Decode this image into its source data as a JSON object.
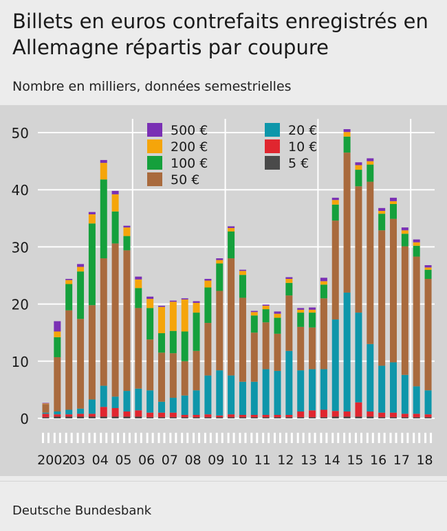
{
  "title": "Billets en euros contrefaits enregistrés en Allemagne répartis par coupure",
  "subtitle": "Nombre en milliers, données semestrielles",
  "source": "Deutsche Bundesbank",
  "colors": {
    "5": "#4a4a4a",
    "10": "#e0262f",
    "20": "#0e96aa",
    "50": "#a96a3d",
    "100": "#15a03c",
    "200": "#f5a50a",
    "500": "#7a30b4"
  },
  "chart_data": {
    "type": "bar",
    "stacked": true,
    "ylim": [
      0,
      50
    ],
    "yticks": [
      0,
      10,
      20,
      30,
      40,
      50
    ],
    "grid": true,
    "legend_placement": "top",
    "legend": [
      "500 €",
      "200 €",
      "100 €",
      "50 €",
      "20 €",
      "10 €",
      "5 €"
    ],
    "year_labels": [
      "2002",
      "03",
      "04",
      "05",
      "06",
      "07",
      "08",
      "09",
      "10",
      "11",
      "12",
      "13",
      "14",
      "15",
      "16",
      "17",
      "18"
    ],
    "categories": [
      "2002 H1",
      "2002 H2",
      "2003 H1",
      "2003 H2",
      "2004 H1",
      "2004 H2",
      "2005 H1",
      "2005 H2",
      "2006 H1",
      "2006 H2",
      "2007 H1",
      "2007 H2",
      "2008 H1",
      "2008 H2",
      "2009 H1",
      "2009 H2",
      "2010 H1",
      "2010 H2",
      "2011 H1",
      "2011 H2",
      "2012 H1",
      "2012 H2",
      "2013 H1",
      "2013 H2",
      "2014 H1",
      "2014 H2",
      "2015 H1",
      "2015 H2",
      "2016 H1",
      "2016 H2",
      "2017 H1",
      "2017 H2",
      "2018 H1",
      "2018 H2"
    ],
    "series": [
      {
        "name": "5 €",
        "color_key": "5",
        "values": [
          0.2,
          0.3,
          0.3,
          0.3,
          0.3,
          0.3,
          0.3,
          0.3,
          0.3,
          0.2,
          0.2,
          0.2,
          0.2,
          0.2,
          0.2,
          0.2,
          0.2,
          0.2,
          0.2,
          0.2,
          0.2,
          0.2,
          0.2,
          0.2,
          0.2,
          0.3,
          0.3,
          0.3,
          0.3,
          0.2,
          0.2,
          0.2,
          0.2,
          0.2
        ]
      },
      {
        "name": "10 €",
        "color_key": "10",
        "values": [
          0.6,
          0.4,
          0.4,
          0.5,
          0.5,
          1.7,
          1.5,
          0.9,
          1.1,
          0.8,
          0.8,
          0.8,
          0.4,
          0.4,
          0.5,
          0.3,
          0.5,
          0.4,
          0.4,
          0.4,
          0.4,
          0.4,
          1.0,
          1.2,
          1.3,
          1.0,
          0.9,
          2.5,
          0.9,
          0.8,
          0.8,
          0.6,
          0.6,
          0.5
        ]
      },
      {
        "name": "20 €",
        "color_key": "20",
        "values": [
          0.2,
          0.5,
          0.8,
          0.9,
          2.5,
          3.7,
          2.0,
          3.6,
          3.8,
          3.9,
          1.9,
          2.6,
          3.4,
          4.3,
          6.8,
          7.9,
          6.8,
          5.8,
          5.8,
          8.0,
          7.7,
          11.2,
          7.2,
          7.2,
          7.1,
          16.0,
          20.8,
          15.7,
          11.8,
          8.2,
          8.8,
          6.8,
          4.8,
          4.2
        ]
      },
      {
        "name": "50 €",
        "color_key": "50",
        "values": [
          1.5,
          9.5,
          17.4,
          15.7,
          16.5,
          22.3,
          26.8,
          24.6,
          14.1,
          8.9,
          8.6,
          7.8,
          6.0,
          6.9,
          9.2,
          13.9,
          20.5,
          14.7,
          8.6,
          8.2,
          6.5,
          9.7,
          7.6,
          7.3,
          12.4,
          17.3,
          24.5,
          22.1,
          28.4,
          23.7,
          25.1,
          22.5,
          22.7,
          19.5
        ]
      },
      {
        "name": "100 €",
        "color_key": "100",
        "values": [
          0.0,
          3.5,
          4.6,
          8.3,
          14.3,
          13.8,
          5.6,
          2.5,
          3.5,
          5.5,
          3.4,
          3.9,
          5.2,
          6.7,
          6.2,
          4.8,
          4.7,
          4.0,
          3.0,
          2.3,
          2.8,
          2.2,
          2.5,
          2.6,
          2.4,
          2.8,
          2.8,
          2.9,
          3.0,
          2.9,
          2.6,
          2.2,
          1.9,
          1.6
        ]
      },
      {
        "name": "200 €",
        "color_key": "200",
        "values": [
          0.1,
          1.0,
          0.7,
          0.8,
          1.6,
          2.9,
          3.0,
          1.5,
          1.5,
          1.6,
          4.6,
          5.1,
          5.6,
          1.7,
          1.2,
          0.6,
          0.6,
          0.7,
          0.6,
          0.6,
          0.7,
          0.7,
          0.5,
          0.5,
          0.6,
          0.8,
          0.8,
          0.8,
          0.6,
          0.5,
          0.5,
          0.6,
          0.6,
          0.4
        ]
      },
      {
        "name": "500 €",
        "color_key": "500",
        "values": [
          0.1,
          1.8,
          0.2,
          0.5,
          0.4,
          0.5,
          0.6,
          0.3,
          0.5,
          0.4,
          0.2,
          0.2,
          0.2,
          0.3,
          0.3,
          0.3,
          0.3,
          0.2,
          0.2,
          0.2,
          0.4,
          0.3,
          0.3,
          0.4,
          0.6,
          0.4,
          0.5,
          0.5,
          0.5,
          0.5,
          0.6,
          0.5,
          0.5,
          0.4
        ]
      }
    ]
  }
}
